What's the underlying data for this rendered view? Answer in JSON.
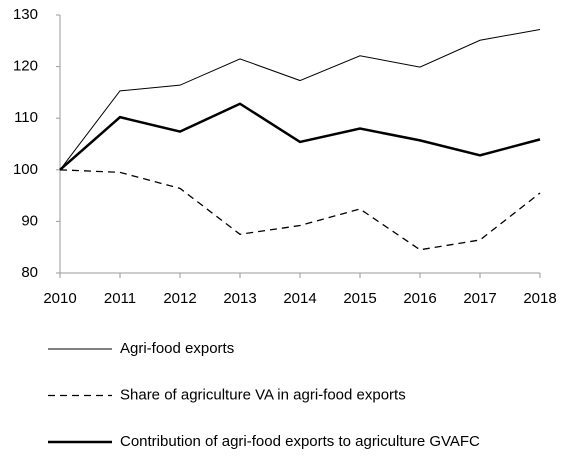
{
  "chart_data": {
    "type": "line",
    "x": [
      2010,
      2011,
      2012,
      2013,
      2014,
      2015,
      2016,
      2017,
      2018
    ],
    "xlim": [
      2010,
      2018
    ],
    "xticks": [
      2010,
      2011,
      2012,
      2013,
      2014,
      2015,
      2016,
      2017,
      2018
    ],
    "ylim": [
      80,
      130
    ],
    "yticks": [
      80,
      90,
      100,
      110,
      120,
      130
    ],
    "grid": false,
    "legend_position": "bottom",
    "series": [
      {
        "name": "Agri-food exports",
        "color": "#000000",
        "line_style": "solid",
        "line_width": 1,
        "values": [
          100,
          115.3,
          116.4,
          121.5,
          117.3,
          122.1,
          119.9,
          125.1,
          127.2
        ]
      },
      {
        "name": "Share of agriculture VA in agri-food exports",
        "color": "#000000",
        "line_style": "dashed",
        "line_width": 1.3,
        "values": [
          100,
          99.5,
          96.4,
          87.5,
          89.2,
          92.4,
          84.5,
          86.4,
          95.5
        ]
      },
      {
        "name": "Contribution of agri-food exports to agriculture GVAFC",
        "color": "#000000",
        "line_style": "solid",
        "line_width": 2.5,
        "values": [
          100,
          110.2,
          107.4,
          112.8,
          105.4,
          108.0,
          105.7,
          102.8,
          105.9
        ]
      }
    ]
  }
}
